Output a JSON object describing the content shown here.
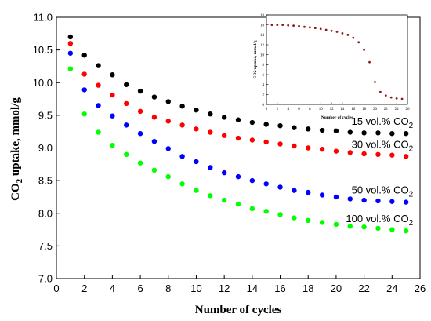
{
  "chart_data": [
    {
      "type": "scatter",
      "xlabel": "Number of cycles",
      "ylabel_main": "CO",
      "ylabel_sub": "2",
      "ylabel_rest": " uptake, mmol/g",
      "xlim": [
        0,
        26
      ],
      "ylim": [
        7.0,
        11.0
      ],
      "x_ticks": [
        "0",
        "2",
        "4",
        "6",
        "8",
        "10",
        "12",
        "14",
        "16",
        "18",
        "20",
        "22",
        "24",
        "26"
      ],
      "y_ticks": [
        "7.0",
        "7.5",
        "8.0",
        "8.5",
        "9.0",
        "9.5",
        "10.0",
        "10.5",
        "11.0"
      ],
      "grid": false,
      "x": [
        1,
        2,
        3,
        4,
        5,
        6,
        7,
        8,
        9,
        10,
        11,
        12,
        13,
        14,
        15,
        16,
        17,
        18,
        19,
        20,
        21,
        22,
        23,
        24,
        25
      ],
      "series": [
        {
          "label_prefix": "15 vol.% CO",
          "label_sub": "2",
          "color": "#000000",
          "values": [
            10.7,
            10.42,
            10.26,
            10.12,
            9.97,
            9.87,
            9.78,
            9.71,
            9.64,
            9.58,
            9.52,
            9.47,
            9.43,
            9.39,
            9.36,
            9.34,
            9.31,
            9.29,
            9.27,
            9.26,
            9.24,
            9.23,
            9.23,
            9.22,
            9.22
          ]
        },
        {
          "label_prefix": "30 vol.% CO",
          "label_sub": "2",
          "color": "#ff0000",
          "values": [
            10.6,
            10.13,
            9.96,
            9.81,
            9.68,
            9.56,
            9.47,
            9.41,
            9.35,
            9.29,
            9.24,
            9.19,
            9.15,
            9.12,
            9.09,
            9.06,
            9.03,
            9.0,
            8.98,
            8.95,
            8.93,
            8.91,
            8.9,
            8.89,
            8.87
          ]
        },
        {
          "label_prefix": "50 vol.% CO",
          "label_sub": "2",
          "color": "#0000ff",
          "values": [
            10.45,
            9.89,
            9.65,
            9.49,
            9.35,
            9.22,
            9.1,
            8.99,
            8.87,
            8.79,
            8.7,
            8.62,
            8.56,
            8.5,
            8.45,
            8.4,
            8.35,
            8.32,
            8.28,
            8.25,
            8.22,
            8.2,
            8.19,
            8.18,
            8.17
          ]
        },
        {
          "label_prefix": "100 vol.% CO",
          "label_sub": "2",
          "color": "#00ff00",
          "values": [
            10.21,
            9.52,
            9.24,
            9.04,
            8.9,
            8.77,
            8.66,
            8.56,
            8.45,
            8.35,
            8.27,
            8.2,
            8.14,
            8.07,
            8.03,
            7.98,
            7.93,
            7.89,
            7.86,
            7.83,
            7.8,
            7.79,
            7.77,
            7.75,
            7.73
          ]
        }
      ]
    },
    {
      "type": "scatter",
      "xlabel": "Number of cycles",
      "ylabel": "CO2 uptake, mmol/g",
      "xlim": [
        0,
        26
      ],
      "ylim": [
        0,
        18
      ],
      "x_ticks": [
        "0",
        "2",
        "4",
        "6",
        "8",
        "10",
        "12",
        "14",
        "16",
        "18",
        "20",
        "22",
        "24",
        "26"
      ],
      "y_ticks": [
        "0",
        "2",
        "4",
        "6",
        "8",
        "10",
        "12",
        "14",
        "16",
        "18"
      ],
      "grid": false,
      "x": [
        1,
        2,
        3,
        4,
        5,
        6,
        7,
        8,
        9,
        10,
        11,
        12,
        13,
        14,
        15,
        16,
        17,
        18,
        19,
        20,
        21,
        22,
        23,
        24,
        25
      ],
      "series": [
        {
          "color": "#8b1a1a",
          "values": [
            16.0,
            16.0,
            16.0,
            15.9,
            15.85,
            15.75,
            15.6,
            15.5,
            15.35,
            15.2,
            15.0,
            14.8,
            14.6,
            14.3,
            14.0,
            13.4,
            12.5,
            11.0,
            8.5,
            4.5,
            2.5,
            1.8,
            1.4,
            1.2,
            1.1
          ]
        }
      ]
    }
  ]
}
